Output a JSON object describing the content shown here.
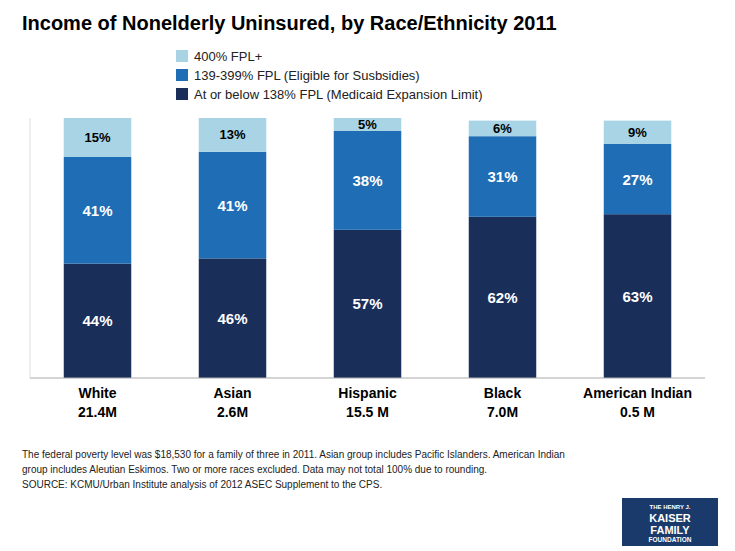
{
  "chart_data": {
    "type": "bar",
    "stacked": true,
    "title": "Income of Nonelderly Uninsured, by Race/Ethnicity 2011",
    "categories": [
      "White",
      "Asian",
      "Hispanic",
      "Black",
      "American Indian"
    ],
    "annotations": [
      "21.4M",
      "2.6M",
      "15.5 M",
      "7.0M",
      "0.5 M"
    ],
    "series": [
      {
        "name": "At or below 138% FPL (Medicaid Expansion Limit)",
        "color": "#1a2e5a",
        "values": [
          44,
          46,
          57,
          62,
          63
        ],
        "value_labels": [
          "44%",
          "46%",
          "57%",
          "62%",
          "63%"
        ]
      },
      {
        "name": "139-399% FPL (Eligible for Susbsidies)",
        "color": "#1e6db5",
        "values": [
          41,
          41,
          38,
          31,
          27
        ],
        "value_labels": [
          "41%",
          "41%",
          "38%",
          "31%",
          "27%"
        ]
      },
      {
        "name": "400% FPL+",
        "color": "#a8d4e6",
        "values": [
          15,
          13,
          5,
          6,
          9
        ],
        "value_labels": [
          "15%",
          "13%",
          "5%",
          "6%",
          "9%"
        ]
      }
    ],
    "ylim": [
      0,
      100
    ],
    "grid": false,
    "data_labels": true,
    "tick_labels": "x",
    "legend": "upper left",
    "footnotes": [
      "The federal poverty level was $18,530 for a family of three  in 2011. Asian group includes Pacific Islanders. American Indian",
      "group includes Aleutian Eskimos. Two or more races excluded. Data may not total 100% due to rounding.",
      "SOURCE: KCMU/Urban Institute analysis of 2012 ASEC Supplement to the CPS."
    ],
    "logo": [
      "THE HENRY J.",
      "KAISER",
      "FAMILY",
      "FOUNDATION"
    ],
    "logo_color": "#1a3a6b"
  }
}
